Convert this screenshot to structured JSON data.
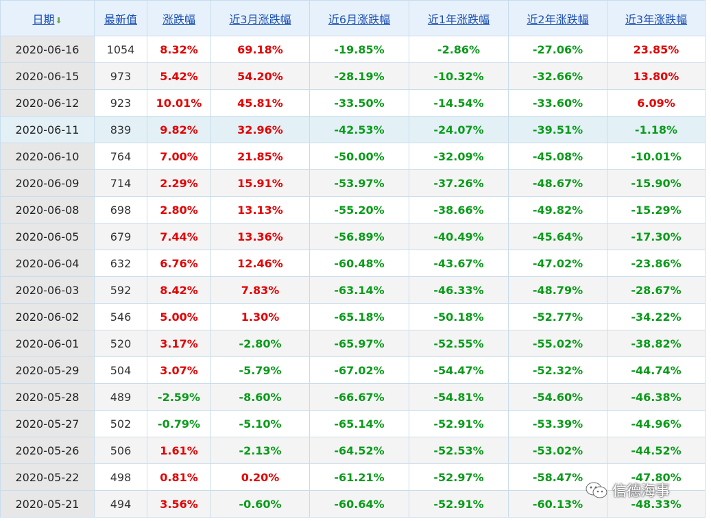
{
  "header": {
    "date": "日期",
    "latest": "最新值",
    "change": "涨跌幅",
    "m3": "近3月涨跌幅",
    "m6": "近6月涨跌幅",
    "y1": "近1年涨跌幅",
    "y2": "近2年涨跌幅",
    "y3": "近3年涨跌幅",
    "sort_icon": "sort-down-arrow-icon"
  },
  "colors": {
    "up": "#e30000",
    "down": "#0a9b1a",
    "header_text": "#1b50b4"
  },
  "rows": [
    [
      "2020-06-16",
      "1054",
      "8.32%",
      "69.18%",
      "-19.85%",
      "-2.86%",
      "-27.06%",
      "23.85%"
    ],
    [
      "2020-06-15",
      "973",
      "5.42%",
      "54.20%",
      "-28.19%",
      "-10.32%",
      "-32.66%",
      "13.80%"
    ],
    [
      "2020-06-12",
      "923",
      "10.01%",
      "45.81%",
      "-33.50%",
      "-14.54%",
      "-33.60%",
      "6.09%"
    ],
    [
      "2020-06-11",
      "839",
      "9.82%",
      "32.96%",
      "-42.53%",
      "-24.07%",
      "-39.51%",
      "-1.18%"
    ],
    [
      "2020-06-10",
      "764",
      "7.00%",
      "21.85%",
      "-50.00%",
      "-32.09%",
      "-45.08%",
      "-10.01%"
    ],
    [
      "2020-06-09",
      "714",
      "2.29%",
      "15.91%",
      "-53.97%",
      "-37.26%",
      "-48.67%",
      "-15.90%"
    ],
    [
      "2020-06-08",
      "698",
      "2.80%",
      "13.13%",
      "-55.20%",
      "-38.66%",
      "-49.82%",
      "-15.29%"
    ],
    [
      "2020-06-05",
      "679",
      "7.44%",
      "13.36%",
      "-56.89%",
      "-40.49%",
      "-45.64%",
      "-17.30%"
    ],
    [
      "2020-06-04",
      "632",
      "6.76%",
      "12.46%",
      "-60.48%",
      "-43.67%",
      "-47.02%",
      "-23.86%"
    ],
    [
      "2020-06-03",
      "592",
      "8.42%",
      "7.83%",
      "-63.14%",
      "-46.33%",
      "-48.79%",
      "-28.67%"
    ],
    [
      "2020-06-02",
      "546",
      "5.00%",
      "1.30%",
      "-65.18%",
      "-50.18%",
      "-52.77%",
      "-34.22%"
    ],
    [
      "2020-06-01",
      "520",
      "3.17%",
      "-2.80%",
      "-65.97%",
      "-52.55%",
      "-55.02%",
      "-38.82%"
    ],
    [
      "2020-05-29",
      "504",
      "3.07%",
      "-5.79%",
      "-67.02%",
      "-54.47%",
      "-52.32%",
      "-44.74%"
    ],
    [
      "2020-05-28",
      "489",
      "-2.59%",
      "-8.60%",
      "-66.67%",
      "-54.81%",
      "-54.60%",
      "-46.38%"
    ],
    [
      "2020-05-27",
      "502",
      "-0.79%",
      "-5.10%",
      "-65.14%",
      "-52.91%",
      "-53.39%",
      "-44.96%"
    ],
    [
      "2020-05-26",
      "506",
      "1.61%",
      "-2.13%",
      "-64.52%",
      "-52.53%",
      "-53.02%",
      "-44.52%"
    ],
    [
      "2020-05-22",
      "498",
      "0.81%",
      "0.20%",
      "-61.21%",
      "-52.97%",
      "-58.47%",
      "-47.80%"
    ],
    [
      "2020-05-21",
      "494",
      "3.56%",
      "-0.60%",
      "-60.64%",
      "-52.91%",
      "-60.13%",
      "-48.33%"
    ]
  ],
  "highlighted_row": "2020-06-11",
  "watermark": {
    "text": "信德海事",
    "icon": "wechat-icon"
  }
}
